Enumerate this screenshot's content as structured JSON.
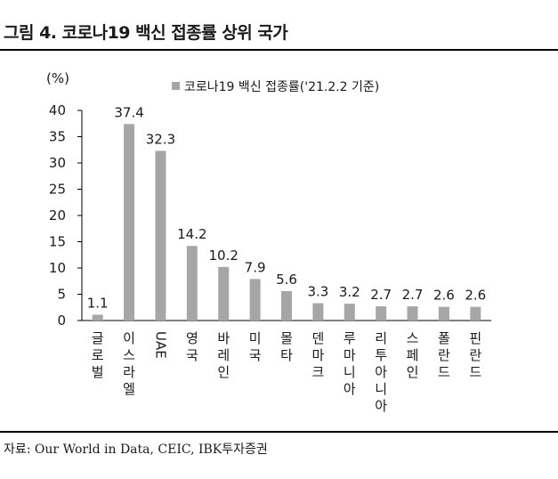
{
  "figure": {
    "title": "그림 4. 코로나19 백신 접종률 상위 국가",
    "source": "자료: Our World in Data, CEIC, IBK투자증권"
  },
  "chart_data": {
    "type": "bar",
    "title": "",
    "ylabel": "(%)",
    "xlabel": "",
    "ylim": [
      0,
      40
    ],
    "yticks": [
      0,
      5,
      10,
      15,
      20,
      25,
      30,
      35,
      40
    ],
    "grid": false,
    "legend_position": "top-center",
    "categories": [
      "글로벌",
      "이스라엘",
      "UAE",
      "영국",
      "바레인",
      "미국",
      "몰타",
      "덴마크",
      "루마니아",
      "리투아니아",
      "스페인",
      "폴란드",
      "핀란드"
    ],
    "series": [
      {
        "name": "코로나19 백신 접종률('21.2.2 기준)",
        "color": "#a6a6a6",
        "values": [
          1.1,
          37.4,
          32.3,
          14.2,
          10.2,
          7.9,
          5.6,
          3.3,
          3.2,
          2.7,
          2.7,
          2.6,
          2.6
        ],
        "labels": [
          "1.1",
          "37.4",
          "32.3",
          "14.2",
          "10.2",
          "7.9",
          "5.6",
          "3.3",
          "3.2",
          "2.7",
          "2.7",
          "2.6",
          "2.6"
        ]
      }
    ]
  }
}
